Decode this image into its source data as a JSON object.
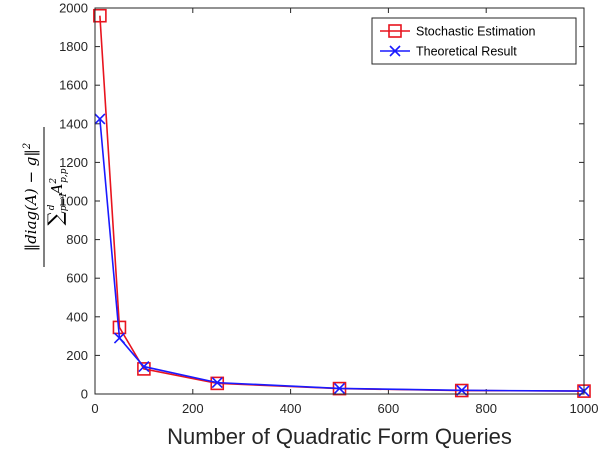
{
  "chart_data": {
    "type": "line",
    "x": [
      10,
      50,
      100,
      250,
      500,
      750,
      1000
    ],
    "xlim": [
      0,
      1000
    ],
    "ylim": [
      0,
      2000
    ],
    "xticks": [
      0,
      200,
      400,
      600,
      800,
      1000
    ],
    "yticks": [
      0,
      200,
      400,
      600,
      800,
      1000,
      1200,
      1400,
      1600,
      1800,
      2000
    ],
    "xlabel": "Number of Quadratic Form Queries",
    "ylabel": "‖diag(A) − g‖² / Σ_{p=1}^{d} A²_{p,p}",
    "grid": false,
    "legend_position": "top-right",
    "series": [
      {
        "name": "Stochastic Estimation",
        "color": "#e8141e",
        "marker": "square",
        "values": [
          1960,
          345,
          130,
          55,
          28,
          18,
          15
        ]
      },
      {
        "name": "Theoretical Result",
        "color": "#1a1aff",
        "marker": "x",
        "values": [
          1425,
          290,
          142,
          59,
          29,
          19,
          15
        ]
      }
    ]
  }
}
